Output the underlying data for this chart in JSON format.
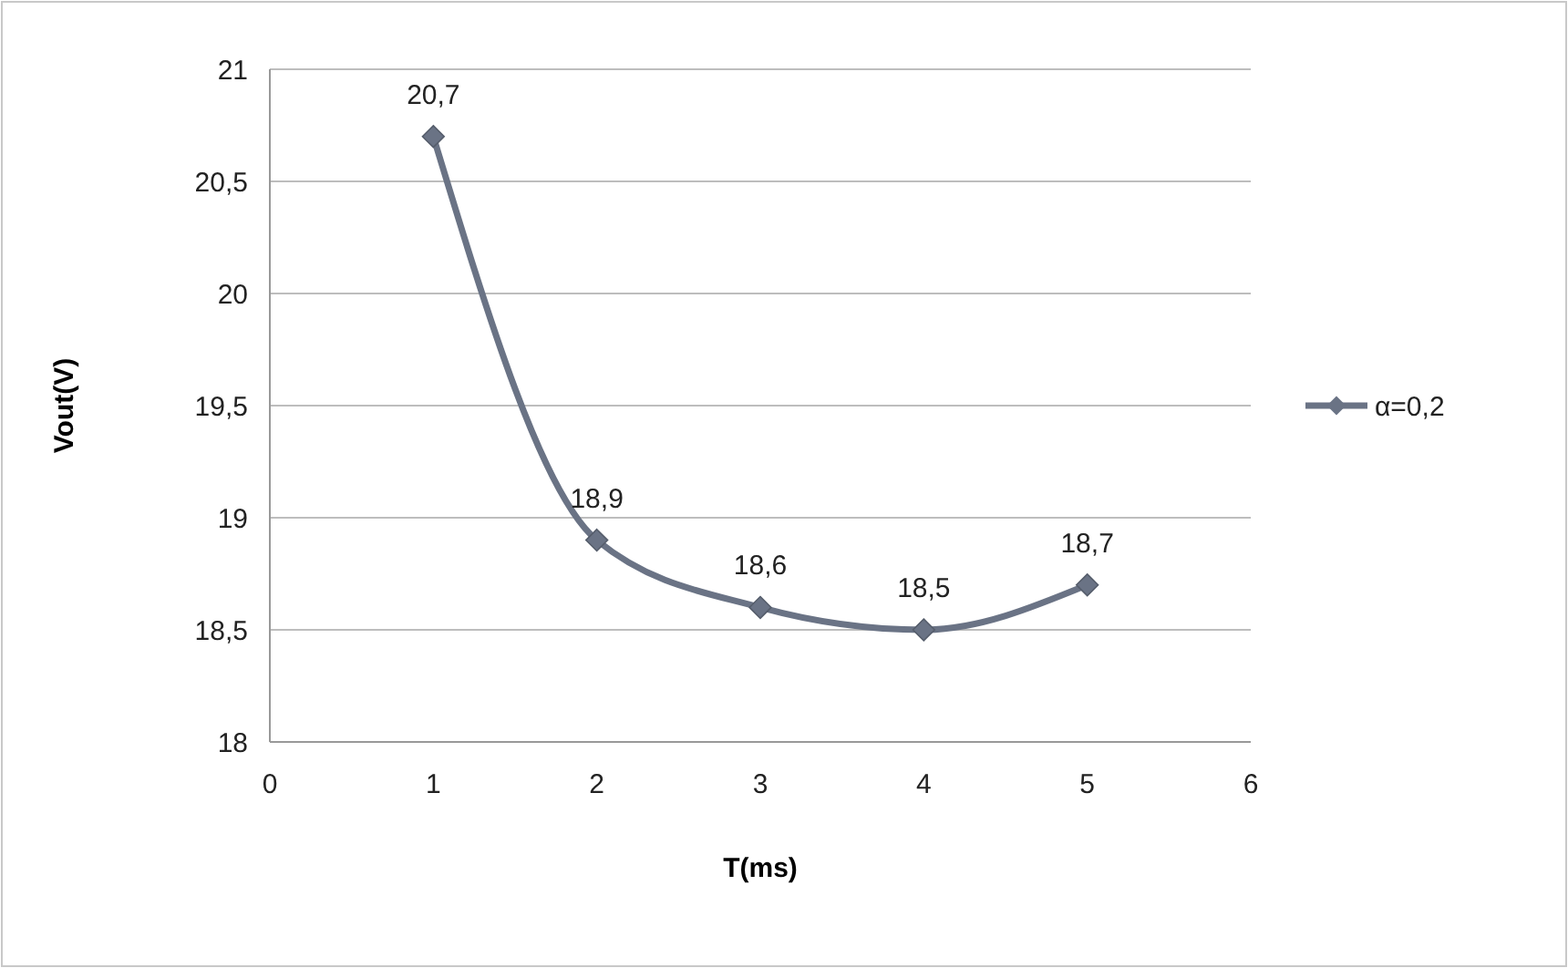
{
  "chart_data": {
    "type": "line",
    "xlabel": "T(ms)",
    "ylabel": "Vout(V)",
    "x": [
      1,
      2,
      3,
      4,
      5
    ],
    "series": [
      {
        "name": "α=0,2",
        "color": "#6a7385",
        "values": [
          20.7,
          18.9,
          18.6,
          18.5,
          18.7
        ],
        "value_labels": [
          "20,7",
          "18,9",
          "18,6",
          "18,5",
          "18,7"
        ]
      }
    ],
    "xlim": [
      0,
      6
    ],
    "xticks": [
      0,
      1,
      2,
      3,
      4,
      5,
      6
    ],
    "ylim": [
      18,
      21
    ],
    "yticks": [
      18,
      {
        "value": 18.5,
        "label": "18,5"
      },
      19,
      {
        "value": 19.5,
        "label": "19,5"
      },
      20,
      {
        "value": 20.5,
        "label": "20,5"
      },
      21
    ],
    "grid": "y",
    "legend": "right",
    "marker": "diamond",
    "line_style": "solid"
  }
}
